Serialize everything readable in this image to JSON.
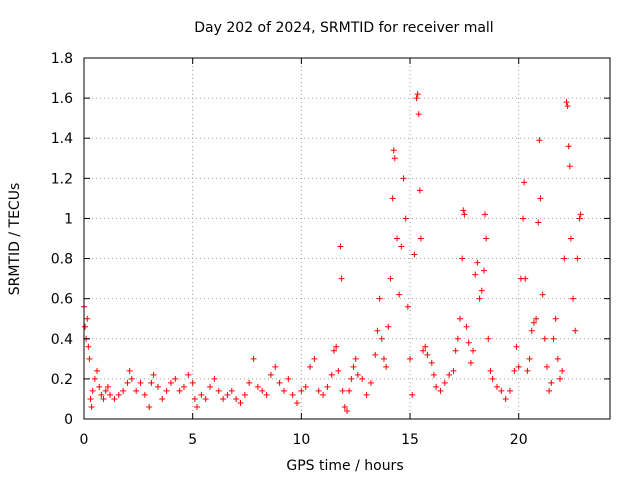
{
  "chart_data": {
    "type": "scatter",
    "title": "Day 202 of 2024, SRMTID for receiver mall",
    "xlabel": "GPS time / hours",
    "ylabel": "SRMTID / TECUs",
    "xlim": [
      0,
      24.2
    ],
    "ylim": [
      0,
      1.8
    ],
    "x_ticks": [
      0,
      5,
      10,
      15,
      20
    ],
    "x_tick_labels": [
      "0",
      "5",
      "10",
      "15",
      "20"
    ],
    "y_ticks": [
      0,
      0.2,
      0.4,
      0.6,
      0.8,
      1.0,
      1.2,
      1.4,
      1.6,
      1.8
    ],
    "y_tick_labels": [
      "0",
      "0.2",
      "0.4",
      "0.6",
      "0.8",
      "1",
      "1.2",
      "1.4",
      "1.6",
      "1.8"
    ],
    "grid": true,
    "marker": "+",
    "color": "#ff0000",
    "series": [
      {
        "name": "SRMTID",
        "points": [
          [
            0.0,
            0.56
          ],
          [
            0.05,
            0.46
          ],
          [
            0.1,
            0.4
          ],
          [
            0.15,
            0.5
          ],
          [
            0.2,
            0.36
          ],
          [
            0.25,
            0.3
          ],
          [
            0.3,
            0.1
          ],
          [
            0.35,
            0.06
          ],
          [
            0.4,
            0.14
          ],
          [
            0.5,
            0.2
          ],
          [
            0.6,
            0.24
          ],
          [
            0.7,
            0.16
          ],
          [
            0.8,
            0.12
          ],
          [
            0.9,
            0.1
          ],
          [
            1.0,
            0.14
          ],
          [
            1.1,
            0.16
          ],
          [
            1.2,
            0.12
          ],
          [
            1.4,
            0.1
          ],
          [
            1.6,
            0.12
          ],
          [
            1.8,
            0.14
          ],
          [
            2.0,
            0.18
          ],
          [
            2.1,
            0.24
          ],
          [
            2.2,
            0.2
          ],
          [
            2.4,
            0.14
          ],
          [
            2.6,
            0.18
          ],
          [
            2.8,
            0.12
          ],
          [
            3.0,
            0.06
          ],
          [
            3.1,
            0.18
          ],
          [
            3.2,
            0.22
          ],
          [
            3.4,
            0.16
          ],
          [
            3.6,
            0.1
          ],
          [
            3.8,
            0.14
          ],
          [
            4.0,
            0.18
          ],
          [
            4.2,
            0.2
          ],
          [
            4.4,
            0.14
          ],
          [
            4.6,
            0.16
          ],
          [
            4.8,
            0.22
          ],
          [
            5.0,
            0.18
          ],
          [
            5.1,
            0.1
          ],
          [
            5.2,
            0.06
          ],
          [
            5.4,
            0.12
          ],
          [
            5.6,
            0.1
          ],
          [
            5.8,
            0.16
          ],
          [
            6.0,
            0.2
          ],
          [
            6.2,
            0.14
          ],
          [
            6.4,
            0.1
          ],
          [
            6.6,
            0.12
          ],
          [
            6.8,
            0.14
          ],
          [
            7.0,
            0.1
          ],
          [
            7.2,
            0.08
          ],
          [
            7.4,
            0.12
          ],
          [
            7.6,
            0.18
          ],
          [
            7.8,
            0.3
          ],
          [
            8.0,
            0.16
          ],
          [
            8.2,
            0.14
          ],
          [
            8.4,
            0.12
          ],
          [
            8.6,
            0.22
          ],
          [
            8.8,
            0.26
          ],
          [
            9.0,
            0.18
          ],
          [
            9.2,
            0.14
          ],
          [
            9.4,
            0.2
          ],
          [
            9.6,
            0.12
          ],
          [
            9.8,
            0.08
          ],
          [
            10.0,
            0.14
          ],
          [
            10.2,
            0.16
          ],
          [
            10.4,
            0.26
          ],
          [
            10.6,
            0.3
          ],
          [
            10.8,
            0.14
          ],
          [
            11.0,
            0.12
          ],
          [
            11.2,
            0.16
          ],
          [
            11.4,
            0.22
          ],
          [
            11.5,
            0.34
          ],
          [
            11.6,
            0.36
          ],
          [
            11.7,
            0.24
          ],
          [
            11.8,
            0.86
          ],
          [
            11.85,
            0.7
          ],
          [
            11.9,
            0.14
          ],
          [
            12.0,
            0.06
          ],
          [
            12.1,
            0.04
          ],
          [
            12.2,
            0.14
          ],
          [
            12.3,
            0.2
          ],
          [
            12.4,
            0.26
          ],
          [
            12.5,
            0.3
          ],
          [
            12.6,
            0.22
          ],
          [
            12.8,
            0.2
          ],
          [
            13.0,
            0.12
          ],
          [
            13.2,
            0.18
          ],
          [
            13.4,
            0.32
          ],
          [
            13.5,
            0.44
          ],
          [
            13.6,
            0.6
          ],
          [
            13.7,
            0.4
          ],
          [
            13.8,
            0.3
          ],
          [
            13.9,
            0.26
          ],
          [
            14.0,
            0.46
          ],
          [
            14.1,
            0.7
          ],
          [
            14.2,
            1.1
          ],
          [
            14.25,
            1.34
          ],
          [
            14.3,
            1.3
          ],
          [
            14.4,
            0.9
          ],
          [
            14.5,
            0.62
          ],
          [
            14.6,
            0.86
          ],
          [
            14.7,
            1.2
          ],
          [
            14.8,
            1.0
          ],
          [
            14.9,
            0.56
          ],
          [
            15.0,
            0.3
          ],
          [
            15.1,
            0.12
          ],
          [
            15.2,
            0.82
          ],
          [
            15.3,
            1.6
          ],
          [
            15.35,
            1.62
          ],
          [
            15.4,
            1.52
          ],
          [
            15.45,
            1.14
          ],
          [
            15.5,
            0.9
          ],
          [
            15.6,
            0.34
          ],
          [
            15.7,
            0.36
          ],
          [
            15.8,
            0.32
          ],
          [
            16.0,
            0.28
          ],
          [
            16.1,
            0.22
          ],
          [
            16.2,
            0.16
          ],
          [
            16.4,
            0.14
          ],
          [
            16.6,
            0.18
          ],
          [
            16.8,
            0.22
          ],
          [
            17.0,
            0.24
          ],
          [
            17.1,
            0.34
          ],
          [
            17.2,
            0.4
          ],
          [
            17.3,
            0.5
          ],
          [
            17.4,
            0.8
          ],
          [
            17.45,
            1.04
          ],
          [
            17.5,
            1.02
          ],
          [
            17.6,
            0.46
          ],
          [
            17.7,
            0.38
          ],
          [
            17.8,
            0.28
          ],
          [
            17.9,
            0.34
          ],
          [
            18.0,
            0.72
          ],
          [
            18.1,
            0.78
          ],
          [
            18.2,
            0.6
          ],
          [
            18.3,
            0.64
          ],
          [
            18.4,
            0.74
          ],
          [
            18.45,
            1.02
          ],
          [
            18.5,
            0.9
          ],
          [
            18.6,
            0.4
          ],
          [
            18.7,
            0.24
          ],
          [
            18.8,
            0.2
          ],
          [
            19.0,
            0.16
          ],
          [
            19.2,
            0.14
          ],
          [
            19.4,
            0.1
          ],
          [
            19.6,
            0.14
          ],
          [
            19.8,
            0.24
          ],
          [
            19.9,
            0.36
          ],
          [
            20.0,
            0.26
          ],
          [
            20.1,
            0.7
          ],
          [
            20.2,
            1.0
          ],
          [
            20.25,
            1.18
          ],
          [
            20.3,
            0.7
          ],
          [
            20.4,
            0.24
          ],
          [
            20.5,
            0.3
          ],
          [
            20.6,
            0.44
          ],
          [
            20.7,
            0.48
          ],
          [
            20.8,
            0.5
          ],
          [
            20.9,
            0.98
          ],
          [
            20.95,
            1.39
          ],
          [
            21.0,
            1.1
          ],
          [
            21.1,
            0.62
          ],
          [
            21.2,
            0.4
          ],
          [
            21.3,
            0.26
          ],
          [
            21.4,
            0.14
          ],
          [
            21.5,
            0.18
          ],
          [
            21.6,
            0.4
          ],
          [
            21.7,
            0.5
          ],
          [
            21.8,
            0.3
          ],
          [
            21.9,
            0.2
          ],
          [
            22.0,
            0.24
          ],
          [
            22.1,
            0.8
          ],
          [
            22.2,
            1.58
          ],
          [
            22.25,
            1.56
          ],
          [
            22.3,
            1.36
          ],
          [
            22.35,
            1.26
          ],
          [
            22.4,
            0.9
          ],
          [
            22.5,
            0.6
          ],
          [
            22.6,
            0.44
          ],
          [
            22.7,
            0.8
          ],
          [
            22.8,
            1.0
          ],
          [
            22.85,
            1.02
          ]
        ]
      }
    ]
  }
}
